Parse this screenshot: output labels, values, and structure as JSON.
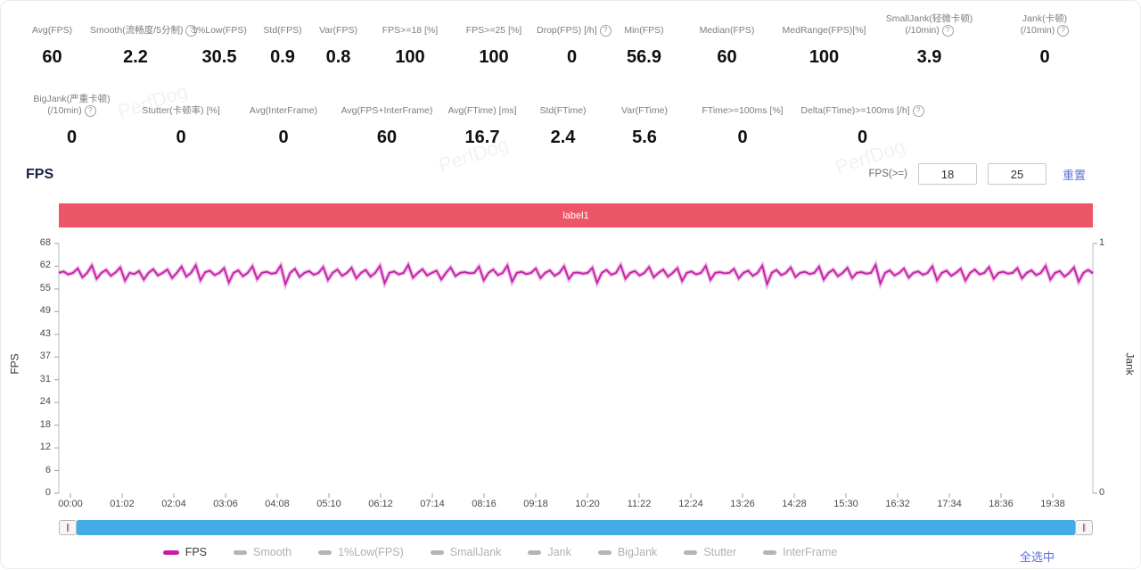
{
  "watermark": "PerfDog",
  "icons": {
    "info": "?",
    "handle": "∥"
  },
  "colors": {
    "banner": "#ec5565",
    "fps_line": "#c41fa6",
    "scrollbar": "#45abe7",
    "link_blue": "#5b73d8",
    "legend_inactive": "#b5b5b5"
  },
  "stats_row1": [
    {
      "label": "Avg(FPS)",
      "value": "60"
    },
    {
      "label": "Smooth(流畅度/5分制)",
      "info": true,
      "value": "2.2"
    },
    {
      "label": "1%Low(FPS)",
      "value": "30.5"
    },
    {
      "label": "Std(FPS)",
      "value": "0.9"
    },
    {
      "label": "Var(FPS)",
      "value": "0.8"
    },
    {
      "label": "FPS>=18 [%]",
      "value": "100"
    },
    {
      "label": "FPS>=25 [%]",
      "value": "100"
    },
    {
      "label": "Drop(FPS) [/h]",
      "info": true,
      "value": "0"
    },
    {
      "label": "Min(FPS)",
      "value": "56.9"
    },
    {
      "label": "Median(FPS)",
      "value": "60"
    },
    {
      "label": "MedRange(FPS)[%]",
      "value": "100"
    },
    {
      "label": "SmallJank(轻微卡顿)",
      "label2": "(/10min)",
      "info": true,
      "value": "3.9"
    },
    {
      "label": "Jank(卡顿)",
      "label2": "(/10min)",
      "info": true,
      "value": "0"
    }
  ],
  "stats_row2": [
    {
      "label": "BigJank(严重卡顿)",
      "label2": "(/10min)",
      "info": true,
      "value": "0"
    },
    {
      "label": "Stutter(卡顿率) [%]",
      "value": "0"
    },
    {
      "label": "Avg(InterFrame)",
      "value": "0"
    },
    {
      "label": "Avg(FPS+InterFrame)",
      "value": "60"
    },
    {
      "label": "Avg(FTime) [ms]",
      "value": "16.7"
    },
    {
      "label": "Std(FTime)",
      "value": "2.4"
    },
    {
      "label": "Var(FTime)",
      "value": "5.6"
    },
    {
      "label": "FTime>=100ms [%]",
      "value": "0"
    },
    {
      "label": "Delta(FTime)>=100ms [/h]",
      "info": true,
      "value": "0"
    }
  ],
  "section": {
    "title": "FPS",
    "threshold_label": "FPS(>=)",
    "input1": "18",
    "input2": "25",
    "reset_label": "重置"
  },
  "banner": {
    "text": "label1",
    "color": "#ec5565"
  },
  "chart_data": {
    "type": "line",
    "title": "FPS",
    "ylabel_left": "FPS",
    "ylabel_right": "Jank",
    "ylim_left": [
      0,
      68
    ],
    "ylim_right": [
      0,
      1
    ],
    "y_ticks_left": [
      68,
      62,
      55,
      49,
      43,
      37,
      31,
      24,
      18,
      12,
      6,
      0
    ],
    "y_ticks_right": [
      1,
      0
    ],
    "x_ticks": [
      "00:00",
      "01:02",
      "02:04",
      "03:06",
      "04:08",
      "05:10",
      "06:12",
      "07:14",
      "08:16",
      "09:18",
      "10:20",
      "11:22",
      "12:24",
      "13:26",
      "14:28",
      "15:30",
      "16:32",
      "17:34",
      "18:36",
      "19:38"
    ],
    "grid": false,
    "legend_position": "bottom",
    "annotation_band": {
      "text": "label1"
    },
    "series": [
      {
        "name": "FPS",
        "color": "#c41fa6",
        "visible": true,
        "baseline": 60,
        "min": 56.9,
        "max": 62.2,
        "values": [
          60,
          60.4,
          59.6,
          60,
          61.2,
          58.8,
          60,
          62,
          58.4,
          60,
          60.8,
          59.2,
          60.1,
          61.5,
          57.9,
          60,
          59.7,
          60.5,
          58.2,
          60,
          61,
          59.3,
          60,
          60.9,
          58.6,
          60,
          61.7,
          59,
          60,
          62.1,
          58,
          60.2,
          60.6,
          59.4,
          60,
          61.3,
          57.4,
          60,
          60.7,
          59.1,
          60,
          61.8,
          58.3,
          60,
          60.3,
          59.8,
          60,
          62,
          56.9,
          60,
          61.1,
          58.9,
          60,
          60.5,
          59.5,
          60,
          61.6,
          58.1,
          60,
          60.9,
          59.2,
          60,
          61.4,
          58.5,
          60,
          60.8,
          59,
          60,
          61.9,
          57.2,
          60,
          60.4,
          59.6,
          60,
          62.2,
          58.7,
          60,
          61,
          59.3,
          60,
          60.6,
          58.2,
          60,
          61.5,
          59.1,
          60,
          60.2,
          59.9,
          60,
          61.7,
          58,
          60,
          60.9,
          59.4,
          60,
          62,
          57.6,
          60,
          60.3,
          59.7,
          60,
          61.2,
          58.6,
          60,
          60.7,
          59.2,
          60,
          61.8,
          58.3,
          60,
          60.1,
          59.8,
          60,
          61.4,
          57.3,
          60,
          60.8,
          59.5,
          60,
          62.1,
          58.4,
          60,
          60.5,
          59.3,
          60,
          61.6,
          58.8,
          60,
          60.9,
          59,
          60,
          61.3,
          57.8,
          60,
          60.4,
          59.6,
          60,
          61.9,
          58.1,
          60,
          60.2,
          59.9,
          60,
          61.1,
          58.5,
          60,
          60.6,
          59.2,
          60,
          62,
          56.9,
          60,
          60.8,
          59.4,
          60,
          61.5,
          58.9,
          60,
          60.3,
          59.7,
          60,
          61.7,
          58.2,
          60,
          60.9,
          59.1,
          60,
          61.4,
          58.6,
          60,
          60.2,
          59.8,
          60,
          62.2,
          57.1,
          60,
          60.7,
          59.3,
          60,
          61.2,
          58.7,
          60,
          60.4,
          59.5,
          60,
          61.8,
          58,
          60,
          60.6,
          59.2,
          60,
          61.1,
          57.9,
          60,
          60.9,
          59.6,
          60,
          61.6,
          58.4,
          60,
          60.3,
          59.8,
          60,
          61.3,
          58.5,
          60,
          60.7,
          59.4,
          60,
          61.9,
          58.2,
          60,
          60.5,
          59,
          60,
          61.5,
          57.6,
          60,
          60.8,
          59.9
        ]
      },
      {
        "name": "Smooth",
        "visible": false
      },
      {
        "name": "1%Low(FPS)",
        "visible": false
      },
      {
        "name": "SmallJank",
        "visible": false
      },
      {
        "name": "Jank",
        "visible": false
      },
      {
        "name": "BigJank",
        "visible": false
      },
      {
        "name": "Stutter",
        "visible": false
      },
      {
        "name": "InterFrame",
        "visible": false
      }
    ]
  },
  "legend": {
    "items": [
      {
        "label": "FPS",
        "active": true
      },
      {
        "label": "Smooth",
        "active": false
      },
      {
        "label": "1%Low(FPS)",
        "active": false
      },
      {
        "label": "SmallJank",
        "active": false
      },
      {
        "label": "Jank",
        "active": false
      },
      {
        "label": "BigJank",
        "active": false
      },
      {
        "label": "Stutter",
        "active": false
      },
      {
        "label": "InterFrame",
        "active": false
      }
    ],
    "select_all_label": "全选中"
  }
}
